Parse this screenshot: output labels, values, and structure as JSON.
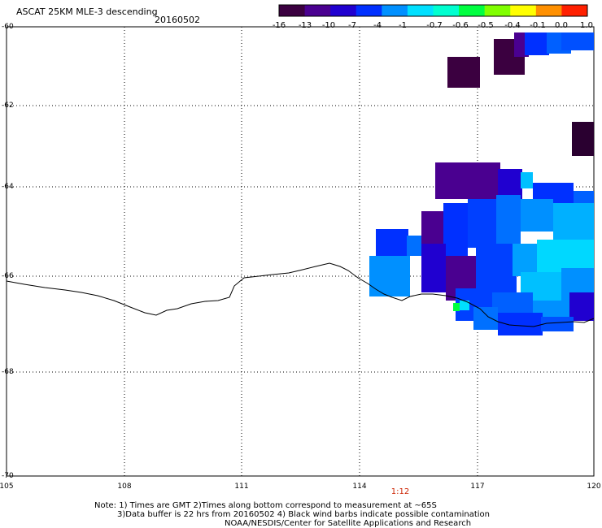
{
  "header": {
    "title": "ASCAT 25KM MLE-3 descending",
    "date": "20160502"
  },
  "colorbar": {
    "labels": [
      "-16",
      "-13",
      "-10",
      "-7",
      "-4",
      "-1",
      "-0.7",
      "-0.6",
      "-0.5",
      "-0.4",
      "-0.1",
      "0.0",
      "1.0"
    ],
    "colors": [
      "#3b0040",
      "#4a0090",
      "#2000d0",
      "#0030ff",
      "#0090ff",
      "#00e0ff",
      "#00ffd0",
      "#00ff40",
      "#80ff00",
      "#ffff00",
      "#ff9000",
      "#ff2000"
    ]
  },
  "axes": {
    "y_ticks": [
      "-60",
      "-62",
      "-64",
      "-66",
      "-68",
      "-70"
    ],
    "x_ticks": [
      "105",
      "108",
      "111",
      "114",
      "117",
      "120"
    ]
  },
  "time_label": "1:12",
  "notes": {
    "line1": "Note: 1) Times are GMT 2)Times along bottom correspond to measurement at ~65S",
    "line2": "3)Data buffer is 22 hrs from 20160502 4) Black wind barbs indicate possible contamination",
    "line3": "NOAA/NESDIS/Center for Satellite Applications and Research"
  },
  "colors": {
    "coastline": "#000000",
    "grid": "#000000"
  }
}
